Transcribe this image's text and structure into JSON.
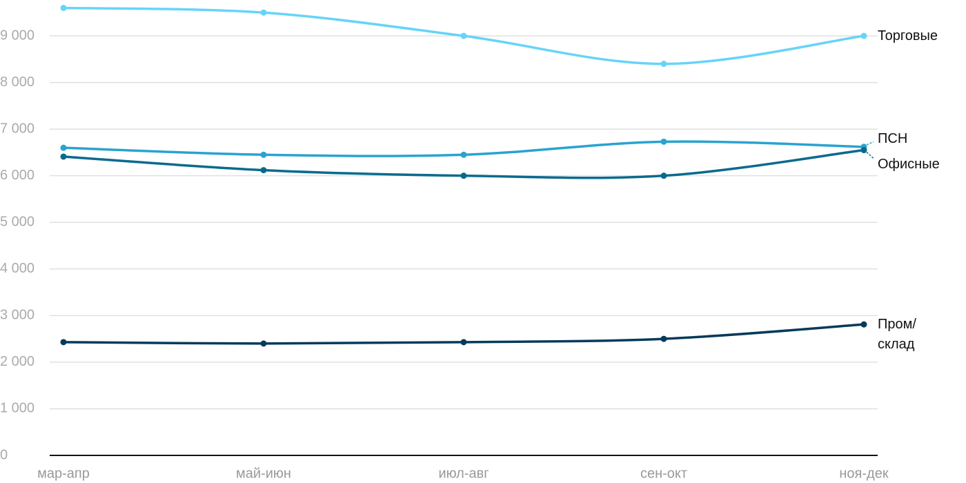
{
  "chart_data": {
    "type": "line",
    "categories": [
      "мар-апр",
      "май-июн",
      "июл-авг",
      "сен-окт",
      "ноя-дек"
    ],
    "series": [
      {
        "name": "Торговые",
        "color": "#66d4f8",
        "values": [
          9600,
          9500,
          9000,
          8400,
          9000
        ]
      },
      {
        "name": "ПСН",
        "color": "#29a3d0",
        "values": [
          6600,
          6450,
          6450,
          6730,
          6620
        ]
      },
      {
        "name": "Офисные",
        "color": "#0a6a8e",
        "values": [
          6410,
          6120,
          6000,
          6000,
          6550
        ]
      },
      {
        "name": "Пром/ склад",
        "color": "#063a5a",
        "values": [
          2430,
          2400,
          2430,
          2500,
          2810
        ]
      }
    ],
    "ylim": [
      0,
      9770
    ],
    "yticks": [
      0,
      {
        "value": 1000,
        "label": "1 000"
      },
      {
        "value": 2000,
        "label": "2 000"
      },
      {
        "value": 3000,
        "label": "3 000"
      },
      {
        "value": 4000,
        "label": "4 000"
      },
      {
        "value": 5000,
        "label": "5 000"
      },
      {
        "value": 6000,
        "label": "6 000"
      },
      {
        "value": 7000,
        "label": "7 000"
      },
      {
        "value": 8000,
        "label": "8 000"
      },
      {
        "value": 9000,
        "label": "9 000"
      }
    ],
    "grid": true
  }
}
